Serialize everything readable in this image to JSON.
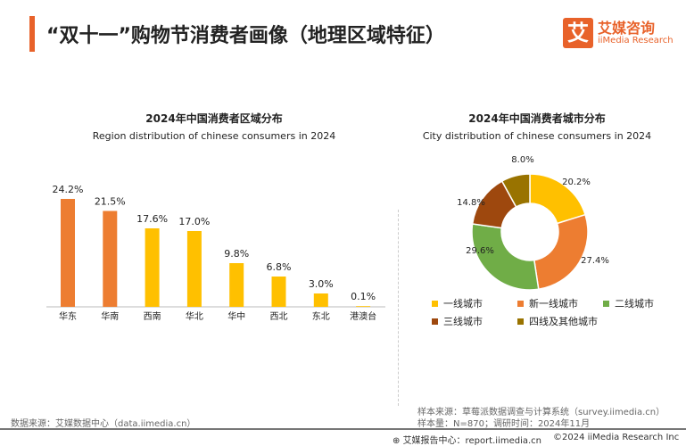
{
  "header": {
    "title": "“双十一”购物节消费者画像（地理区域特征）",
    "logo_mark": "艾",
    "logo_cn": "艾媒咨询",
    "logo_en": "iiMedia Research"
  },
  "chart_data": [
    {
      "type": "bar",
      "title": "2024年中国消费者区域分布",
      "subtitle": "Region distribution of chinese consumers in 2024",
      "categories": [
        "华东",
        "华南",
        "西南",
        "华北",
        "华中",
        "西北",
        "东北",
        "港澳台"
      ],
      "values": [
        24.2,
        21.5,
        17.6,
        17.0,
        9.8,
        6.8,
        3.0,
        0.1
      ],
      "labels": [
        "24.2%",
        "21.5%",
        "17.6%",
        "17.0%",
        "9.8%",
        "6.8%",
        "3.0%",
        "0.1%"
      ],
      "colors": [
        "#ED7D31",
        "#ED7D31",
        "#FFC000",
        "#FFC000",
        "#FFC000",
        "#FFC000",
        "#FFC000",
        "#FFC000"
      ],
      "grid": false
    },
    {
      "type": "pie",
      "donut": true,
      "title": "2024年中国消费者城市分布",
      "subtitle": "City distribution of chinese consumers in 2024",
      "categories": [
        "一线城市",
        "新一线城市",
        "二线城市",
        "三线城市",
        "四线及其他城市"
      ],
      "values": [
        20.2,
        27.4,
        29.6,
        14.8,
        8.0
      ],
      "labels": [
        "20.2%",
        "27.4%",
        "29.6%",
        "14.8%",
        "8.0%"
      ],
      "colors": [
        "#FFC000",
        "#ED7D31",
        "#70AD47",
        "#9E480E",
        "#997300"
      ],
      "legend": "bottom"
    }
  ],
  "footer": {
    "source_left": "数据来源：艾媒数据中心（data.iimedia.cn）",
    "sample_source": "样本来源：草莓派数据调查与计算系统（survey.iimedia.cn）",
    "sample_size": "样本量：N=870；调研时间：2024年11月",
    "report": "艾媒报告中心：report.iimedia.cn",
    "copyright": "©2024  iiMedia Research  Inc"
  }
}
